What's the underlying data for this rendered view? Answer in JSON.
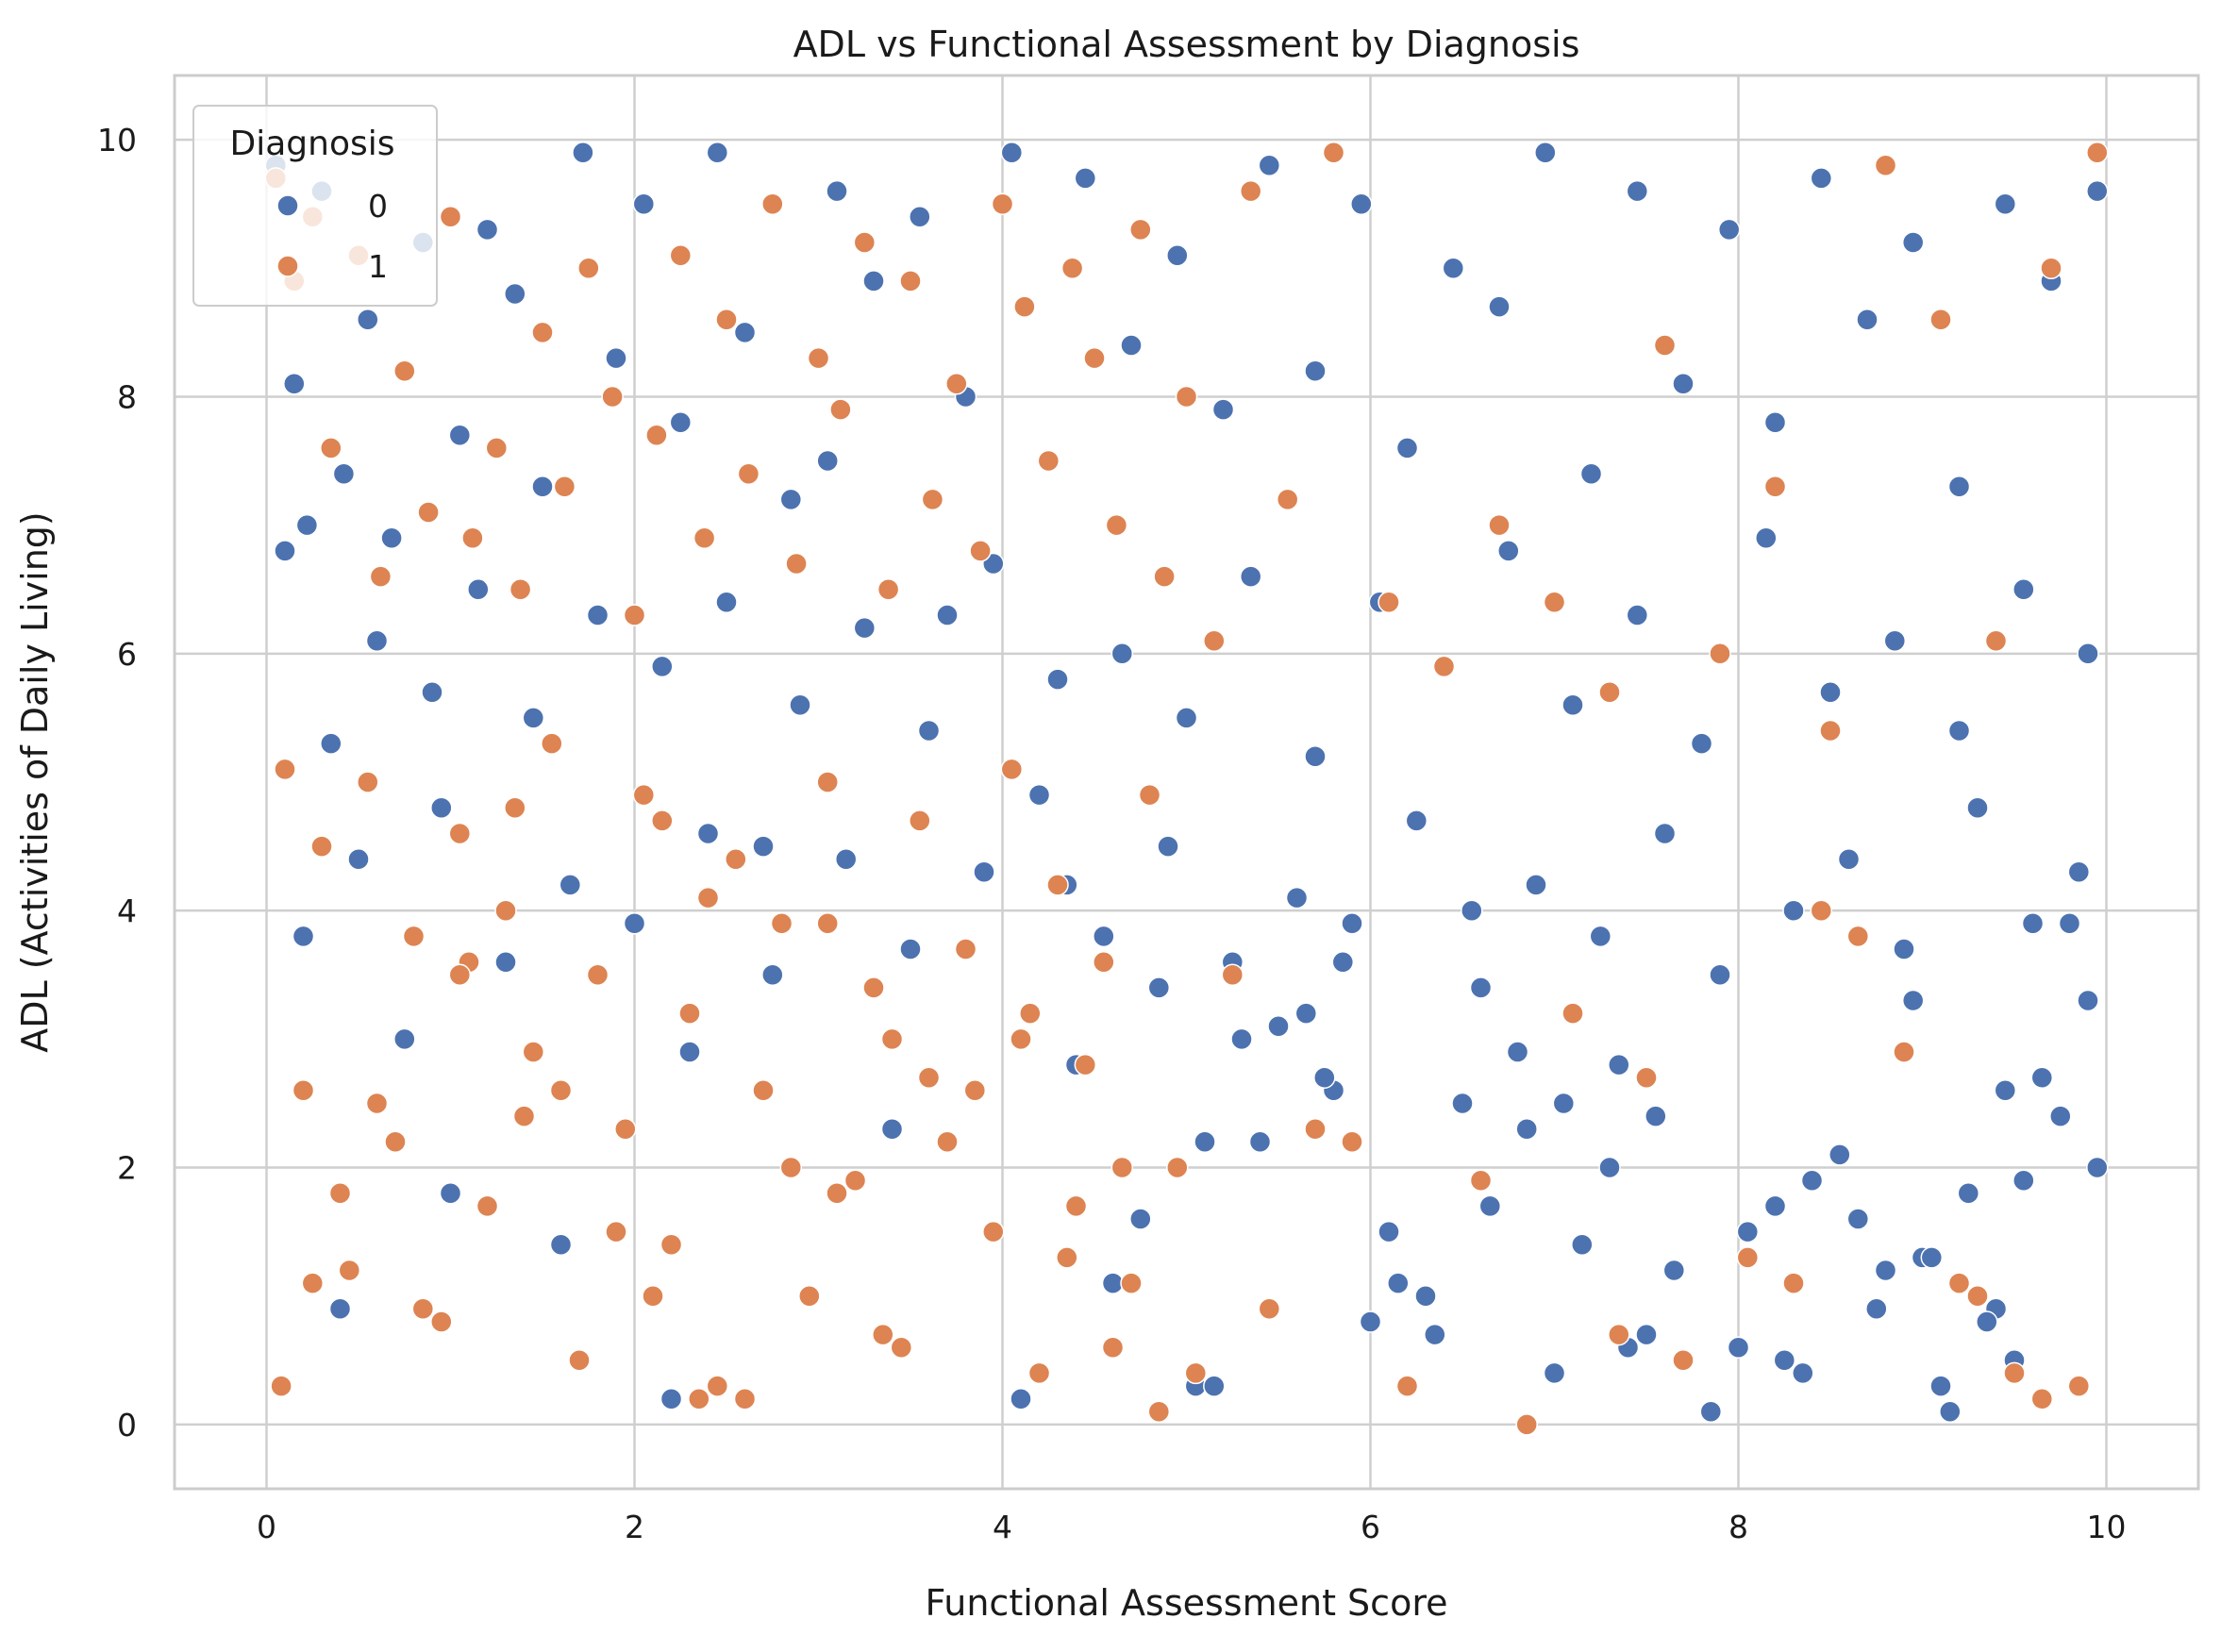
{
  "chart_data": {
    "type": "scatter",
    "title": "ADL vs Functional Assessment by Diagnosis",
    "xlabel": "Functional Assessment Score",
    "ylabel": "ADL (Activities of Daily Living)",
    "xlim": [
      -0.5,
      10.5
    ],
    "ylim": [
      -0.5,
      10.5
    ],
    "xticks": [
      0,
      2,
      4,
      6,
      8,
      10
    ],
    "yticks": [
      0,
      2,
      4,
      6,
      8,
      10
    ],
    "grid": true,
    "legend": {
      "title": "Diagnosis",
      "placement": "top-left",
      "entries": [
        "0",
        "1"
      ]
    },
    "series": [
      {
        "name": "0",
        "color": "#4c72b0",
        "x": [
          0.05,
          0.15,
          0.22,
          0.3,
          0.42,
          0.55,
          0.68,
          0.85,
          1.05,
          1.2,
          1.35,
          1.5,
          1.72,
          1.9,
          2.05,
          2.25,
          2.45,
          2.6,
          2.85,
          3.1,
          3.3,
          3.55,
          3.8,
          4.05,
          4.25,
          4.45,
          4.7,
          4.95,
          5.2,
          5.45,
          5.7,
          5.95,
          6.2,
          6.45,
          6.7,
          6.95,
          7.2,
          7.45,
          7.7,
          7.95,
          8.2,
          8.45,
          8.7,
          8.95,
          9.2,
          9.45,
          9.7,
          9.95,
          0.1,
          0.35,
          0.6,
          0.9,
          1.15,
          1.45,
          1.8,
          2.15,
          2.5,
          2.9,
          3.25,
          3.6,
          3.95,
          4.3,
          4.65,
          5.0,
          5.35,
          5.7,
          6.05,
          6.4,
          6.75,
          7.1,
          7.45,
          7.8,
          8.15,
          8.5,
          8.85,
          9.2,
          9.55,
          9.9,
          0.2,
          0.5,
          0.95,
          1.3,
          1.65,
          2.0,
          2.4,
          2.75,
          3.15,
          3.5,
          3.9,
          4.2,
          4.55,
          4.9,
          5.25,
          5.6,
          5.9,
          6.25,
          6.6,
          6.9,
          7.25,
          7.6,
          7.9,
          8.3,
          8.6,
          8.9,
          9.3,
          9.6,
          9.85,
          1.0,
          2.2,
          3.4,
          4.6,
          5.8,
          7.0,
          8.2,
          9.4,
          4.4,
          5.5,
          6.1,
          7.3,
          8.0,
          8.8,
          9.1,
          9.75,
          5.1,
          6.3,
          6.8,
          7.5,
          8.4,
          9.0,
          9.5,
          4.75,
          5.3,
          6.0,
          6.5,
          7.15,
          7.85,
          8.55,
          9.25,
          9.65,
          5.05,
          5.65,
          6.15,
          6.85,
          7.4,
          8.05,
          8.75,
          9.45,
          9.9,
          2.3,
          2.7,
          3.05,
          3.7,
          4.1,
          1.6,
          0.75,
          0.4,
          6.55,
          7.05,
          7.65,
          8.35,
          8.95,
          9.55,
          5.4,
          5.85,
          6.35,
          7.35,
          8.65,
          9.15,
          9.8,
          4.35,
          4.85,
          5.15,
          5.75,
          6.65,
          7.55,
          8.25,
          9.05,
          9.35,
          9.95
        ],
        "y": [
          9.8,
          8.1,
          7.0,
          9.6,
          7.4,
          8.6,
          6.9,
          9.2,
          7.7,
          9.3,
          8.8,
          7.3,
          9.9,
          8.3,
          9.5,
          7.8,
          9.9,
          8.5,
          7.2,
          9.6,
          8.9,
          9.4,
          8.0,
          9.9,
          7.5,
          9.7,
          8.4,
          9.1,
          7.9,
          9.8,
          8.2,
          9.5,
          7.6,
          9.0,
          8.7,
          9.9,
          7.4,
          9.6,
          8.1,
          9.3,
          7.8,
          9.7,
          8.6,
          9.2,
          7.3,
          9.5,
          8.9,
          9.6,
          6.8,
          5.3,
          6.1,
          5.7,
          6.5,
          5.5,
          6.3,
          5.9,
          6.4,
          5.6,
          6.2,
          5.4,
          6.7,
          5.8,
          6.0,
          5.5,
          6.6,
          5.2,
          6.4,
          5.9,
          6.8,
          5.6,
          6.3,
          5.3,
          6.9,
          5.7,
          6.1,
          5.4,
          6.5,
          6.0,
          3.8,
          4.4,
          4.8,
          3.6,
          4.2,
          3.9,
          4.6,
          3.5,
          4.4,
          3.7,
          4.3,
          4.9,
          3.8,
          4.5,
          3.6,
          4.1,
          3.9,
          4.7,
          3.4,
          4.2,
          3.8,
          4.6,
          3.5,
          4.0,
          4.4,
          3.7,
          4.8,
          3.9,
          4.3,
          1.8,
          0.2,
          2.3,
          1.1,
          2.6,
          0.4,
          1.7,
          0.9,
          2.8,
          3.1,
          1.5,
          2.0,
          0.6,
          1.2,
          0.3,
          2.4,
          2.2,
          1.0,
          2.9,
          0.7,
          1.9,
          1.3,
          0.5,
          1.6,
          3.0,
          0.8,
          2.5,
          1.4,
          0.1,
          2.1,
          1.8,
          2.7,
          0.3,
          3.2,
          1.1,
          2.3,
          0.6,
          1.5,
          0.9,
          2.6,
          3.3,
          2.9,
          4.5,
          7.5,
          6.3,
          0.2,
          1.4,
          3.0,
          0.9,
          4.0,
          2.5,
          1.2,
          0.4,
          3.3,
          1.9,
          2.2,
          3.6,
          0.7,
          2.8,
          1.6,
          0.1,
          3.9,
          4.2,
          3.4,
          0.3,
          2.7,
          1.7,
          2.4,
          0.5,
          1.3,
          0.8,
          2.0
        ],
        "note": ""
      },
      {
        "name": "1",
        "color": "#dd8452",
        "x": [
          0.05,
          0.15,
          0.25,
          0.35,
          0.5,
          0.62,
          0.75,
          0.88,
          1.0,
          1.12,
          1.25,
          1.38,
          1.5,
          1.62,
          1.75,
          1.88,
          2.0,
          2.12,
          2.25,
          2.38,
          2.5,
          2.62,
          2.75,
          2.88,
          3.0,
          3.12,
          3.25,
          3.38,
          3.5,
          3.62,
          3.75,
          3.88,
          4.0,
          4.12,
          4.25,
          4.38,
          4.5,
          4.62,
          4.75,
          4.88,
          5.0,
          5.15,
          5.35,
          5.55,
          5.8,
          6.1,
          6.4,
          6.7,
          7.0,
          7.3,
          7.6,
          7.9,
          8.2,
          8.5,
          8.8,
          9.1,
          9.4,
          9.7,
          9.95,
          0.1,
          0.3,
          0.55,
          0.8,
          1.05,
          1.3,
          1.55,
          1.8,
          2.05,
          2.3,
          2.55,
          2.8,
          3.05,
          3.3,
          3.55,
          3.8,
          4.05,
          4.3,
          4.55,
          4.8,
          0.2,
          0.45,
          0.7,
          0.95,
          1.2,
          1.45,
          1.7,
          1.95,
          2.2,
          2.45,
          2.7,
          2.95,
          3.2,
          3.45,
          3.7,
          3.95,
          4.2,
          4.45,
          4.7,
          4.95,
          0.08,
          0.4,
          0.85,
          1.4,
          1.9,
          2.35,
          2.85,
          3.35,
          3.85,
          4.35,
          4.85,
          5.25,
          5.7,
          6.2,
          6.6,
          7.1,
          7.7,
          8.3,
          8.9,
          9.5,
          1.1,
          1.6,
          2.1,
          2.6,
          3.1,
          3.6,
          4.1,
          4.6,
          0.6,
          1.35,
          2.4,
          3.4,
          4.4,
          5.05,
          5.45,
          5.9,
          6.85,
          7.5,
          8.05,
          8.65,
          9.2,
          9.85,
          4.15,
          4.65,
          3.05,
          2.15,
          1.05,
          0.25,
          9.3,
          9.65,
          8.45,
          7.35
        ],
        "y": [
          9.7,
          8.9,
          9.4,
          7.6,
          9.1,
          6.6,
          8.2,
          7.1,
          9.4,
          6.9,
          7.6,
          6.5,
          8.5,
          7.3,
          9.0,
          8.0,
          6.3,
          7.7,
          9.1,
          6.9,
          8.6,
          7.4,
          9.5,
          6.7,
          8.3,
          7.9,
          9.2,
          6.5,
          8.9,
          7.2,
          8.1,
          6.8,
          9.5,
          8.7,
          7.5,
          9.0,
          8.3,
          7.0,
          9.3,
          6.6,
          8.0,
          6.1,
          9.6,
          7.2,
          9.9,
          6.4,
          5.9,
          7.0,
          6.4,
          5.7,
          8.4,
          6.0,
          7.3,
          5.4,
          9.8,
          8.6,
          6.1,
          9.0,
          9.9,
          5.1,
          4.5,
          5.0,
          3.8,
          4.6,
          4.0,
          5.3,
          3.5,
          4.9,
          3.2,
          4.4,
          3.9,
          5.0,
          3.4,
          4.7,
          3.7,
          5.1,
          4.2,
          3.6,
          4.9,
          2.6,
          1.2,
          2.2,
          0.8,
          1.7,
          2.9,
          0.5,
          2.3,
          1.4,
          0.3,
          2.6,
          1.0,
          1.9,
          0.6,
          2.2,
          1.5,
          0.4,
          2.8,
          1.1,
          2.0,
          0.3,
          1.8,
          0.9,
          2.4,
          1.5,
          0.2,
          2.0,
          0.7,
          2.6,
          1.3,
          0.1,
          3.5,
          2.3,
          0.3,
          1.9,
          3.2,
          0.5,
          1.1,
          2.9,
          0.4,
          3.6,
          2.6,
          1.0,
          0.2,
          1.8,
          2.7,
          3.0,
          0.6,
          2.5,
          4.8,
          4.1,
          3.0,
          1.7,
          0.4,
          0.9,
          2.2,
          0.0,
          2.7,
          1.3,
          3.8,
          1.1,
          0.3,
          3.2,
          2.0,
          3.9,
          4.7,
          3.5,
          1.1,
          1.0,
          0.2,
          4.0,
          0.7
        ],
        "note": ""
      }
    ]
  }
}
